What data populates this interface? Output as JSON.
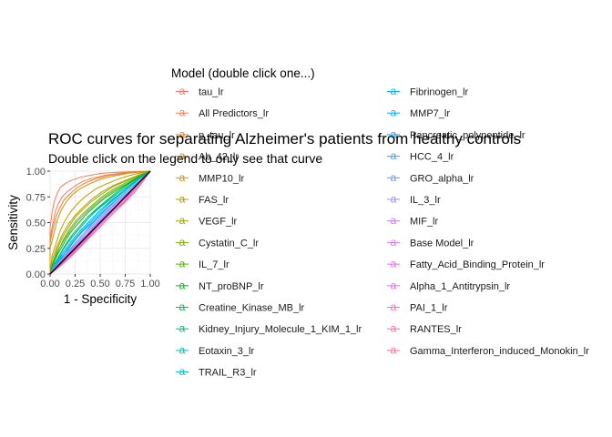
{
  "chart_data": {
    "type": "line",
    "title": "ROC curves for separating Alzheimer's patients from healthy controls",
    "subtitle": "Double click on the legend to only see that curve",
    "xlabel": "1 - Specificity",
    "ylabel": "Sensitivity",
    "xlim": [
      0,
      1
    ],
    "ylim": [
      0,
      1
    ],
    "x_ticks": [
      "0.00",
      "0.25",
      "0.50",
      "0.75",
      "1.00"
    ],
    "y_ticks": [
      "0.00",
      "0.25",
      "0.50",
      "0.75",
      "1.00"
    ],
    "grid": true,
    "reference_line": {
      "x": [
        0,
        1
      ],
      "y": [
        0,
        1
      ]
    },
    "legend": {
      "title": "Model (double click one...)",
      "placement": "right"
    },
    "series": [
      {
        "name": "tau_lr",
        "color": "#F8766D",
        "x": [
          0,
          0,
          0.03,
          0.05,
          0.08,
          0.12,
          0.17,
          0.24,
          0.32,
          0.42,
          0.55,
          0.7,
          1
        ],
        "y": [
          0,
          0.35,
          0.5,
          0.6,
          0.68,
          0.75,
          0.8,
          0.85,
          0.9,
          0.93,
          0.96,
          0.98,
          1
        ]
      },
      {
        "name": "All Predictors_lr",
        "color": "#F07F59",
        "x": [
          0,
          0,
          0.02,
          0.04,
          0.07,
          0.1,
          0.15,
          0.21,
          0.3,
          0.4,
          0.52,
          0.7,
          1
        ],
        "y": [
          0,
          0.45,
          0.6,
          0.7,
          0.78,
          0.84,
          0.88,
          0.91,
          0.94,
          0.96,
          0.98,
          0.99,
          1
        ]
      },
      {
        "name": "p_tau_lr",
        "color": "#E68613",
        "x": [
          0,
          0,
          0.03,
          0.06,
          0.1,
          0.14,
          0.2,
          0.27,
          0.36,
          0.47,
          0.6,
          0.75,
          1
        ],
        "y": [
          0,
          0.3,
          0.45,
          0.56,
          0.65,
          0.72,
          0.78,
          0.84,
          0.89,
          0.93,
          0.96,
          0.98,
          1
        ]
      },
      {
        "name": "Ab_42_lr",
        "color": "#D89000",
        "x": [
          0,
          0,
          0.04,
          0.07,
          0.11,
          0.16,
          0.22,
          0.3,
          0.4,
          0.5,
          0.62,
          0.78,
          1
        ],
        "y": [
          0,
          0.25,
          0.4,
          0.52,
          0.62,
          0.7,
          0.77,
          0.83,
          0.88,
          0.92,
          0.95,
          0.98,
          1
        ]
      },
      {
        "name": "MMP10_lr",
        "color": "#C49A00",
        "x": [
          0,
          0.02,
          0.06,
          0.1,
          0.15,
          0.21,
          0.28,
          0.36,
          0.46,
          0.57,
          0.7,
          0.84,
          1
        ],
        "y": [
          0,
          0.18,
          0.3,
          0.42,
          0.52,
          0.61,
          0.69,
          0.76,
          0.83,
          0.88,
          0.93,
          0.97,
          1
        ]
      },
      {
        "name": "FAS_lr",
        "color": "#B0A000",
        "x": [
          0,
          0.02,
          0.07,
          0.12,
          0.18,
          0.25,
          0.33,
          0.42,
          0.52,
          0.63,
          0.75,
          0.88,
          1
        ],
        "y": [
          0,
          0.14,
          0.27,
          0.38,
          0.48,
          0.57,
          0.65,
          0.73,
          0.8,
          0.86,
          0.91,
          0.96,
          1
        ]
      },
      {
        "name": "VEGF_lr",
        "color": "#99A800",
        "x": [
          0,
          0.03,
          0.07,
          0.12,
          0.18,
          0.25,
          0.33,
          0.42,
          0.52,
          0.63,
          0.75,
          0.88,
          1
        ],
        "y": [
          0,
          0.12,
          0.24,
          0.35,
          0.45,
          0.55,
          0.63,
          0.71,
          0.78,
          0.85,
          0.9,
          0.96,
          1
        ]
      },
      {
        "name": "Cystatin_C_lr",
        "color": "#7CAE00",
        "x": [
          0,
          0.03,
          0.08,
          0.13,
          0.19,
          0.26,
          0.34,
          0.43,
          0.53,
          0.64,
          0.76,
          0.88,
          1
        ],
        "y": [
          0,
          0.1,
          0.22,
          0.33,
          0.43,
          0.52,
          0.6,
          0.68,
          0.76,
          0.83,
          0.89,
          0.95,
          1
        ]
      },
      {
        "name": "IL_7_lr",
        "color": "#53B400",
        "x": [
          0,
          0.03,
          0.08,
          0.14,
          0.2,
          0.27,
          0.35,
          0.44,
          0.54,
          0.65,
          0.77,
          0.89,
          1
        ],
        "y": [
          0,
          0.12,
          0.23,
          0.33,
          0.42,
          0.51,
          0.59,
          0.67,
          0.75,
          0.82,
          0.88,
          0.95,
          1
        ]
      },
      {
        "name": "NT_proBNP_lr",
        "color": "#00B81F",
        "x": [
          0,
          0.03,
          0.08,
          0.14,
          0.2,
          0.28,
          0.36,
          0.45,
          0.55,
          0.66,
          0.78,
          0.89,
          1
        ],
        "y": [
          0,
          0.1,
          0.2,
          0.3,
          0.4,
          0.49,
          0.58,
          0.66,
          0.74,
          0.81,
          0.88,
          0.95,
          1
        ]
      },
      {
        "name": "Creatine_Kinase_MB_lr",
        "color": "#00BB4E",
        "x": [
          0,
          0.04,
          0.09,
          0.15,
          0.22,
          0.3,
          0.38,
          0.47,
          0.57,
          0.67,
          0.78,
          0.89,
          1
        ],
        "y": [
          0,
          0.09,
          0.18,
          0.28,
          0.38,
          0.47,
          0.56,
          0.64,
          0.72,
          0.8,
          0.87,
          0.94,
          1
        ]
      },
      {
        "name": "Kidney_Injury_Molecule_1_KIM_1_lr",
        "color": "#00BF7D",
        "x": [
          0,
          0.04,
          0.09,
          0.15,
          0.22,
          0.3,
          0.38,
          0.47,
          0.57,
          0.68,
          0.79,
          0.9,
          1
        ],
        "y": [
          0,
          0.08,
          0.17,
          0.27,
          0.36,
          0.45,
          0.54,
          0.63,
          0.71,
          0.79,
          0.86,
          0.94,
          1
        ]
      },
      {
        "name": "Eotaxin_3_lr",
        "color": "#00C1A3",
        "x": [
          0,
          0.04,
          0.1,
          0.16,
          0.23,
          0.31,
          0.39,
          0.48,
          0.58,
          0.68,
          0.79,
          0.9,
          1
        ],
        "y": [
          0,
          0.1,
          0.19,
          0.28,
          0.37,
          0.46,
          0.55,
          0.63,
          0.71,
          0.79,
          0.86,
          0.93,
          1
        ]
      },
      {
        "name": "TRAIL_R3_lr",
        "color": "#00BFC4",
        "x": [
          0,
          0.04,
          0.1,
          0.16,
          0.23,
          0.31,
          0.4,
          0.49,
          0.59,
          0.69,
          0.8,
          0.9,
          1
        ],
        "y": [
          0,
          0.08,
          0.16,
          0.25,
          0.34,
          0.43,
          0.52,
          0.61,
          0.7,
          0.78,
          0.85,
          0.93,
          1
        ]
      },
      {
        "name": "Fibrinogen_lr",
        "color": "#00BAE0",
        "x": [
          0,
          0.05,
          0.1,
          0.17,
          0.24,
          0.32,
          0.41,
          0.5,
          0.6,
          0.7,
          0.8,
          0.9,
          1
        ],
        "y": [
          0,
          0.09,
          0.17,
          0.26,
          0.35,
          0.44,
          0.53,
          0.62,
          0.7,
          0.78,
          0.86,
          0.93,
          1
        ]
      },
      {
        "name": "MMP7_lr",
        "color": "#00B4EF",
        "x": [
          0,
          0.05,
          0.11,
          0.17,
          0.24,
          0.32,
          0.41,
          0.5,
          0.6,
          0.7,
          0.8,
          0.9,
          1
        ],
        "y": [
          0,
          0.07,
          0.15,
          0.24,
          0.33,
          0.42,
          0.51,
          0.6,
          0.69,
          0.77,
          0.85,
          0.93,
          1
        ]
      },
      {
        "name": "Pancreatic_polypeptide_lr",
        "color": "#00A9FF",
        "x": [
          0,
          0.05,
          0.11,
          0.18,
          0.25,
          0.33,
          0.42,
          0.51,
          0.61,
          0.71,
          0.81,
          0.91,
          1
        ],
        "y": [
          0,
          0.08,
          0.16,
          0.24,
          0.33,
          0.42,
          0.5,
          0.59,
          0.68,
          0.76,
          0.84,
          0.92,
          1
        ]
      },
      {
        "name": "HCC_4_lr",
        "color": "#35A2FF",
        "x": [
          0,
          0.05,
          0.11,
          0.18,
          0.26,
          0.34,
          0.42,
          0.51,
          0.61,
          0.71,
          0.81,
          0.91,
          1
        ],
        "y": [
          0,
          0.07,
          0.14,
          0.22,
          0.31,
          0.4,
          0.49,
          0.58,
          0.67,
          0.76,
          0.84,
          0.92,
          1
        ]
      },
      {
        "name": "GRO_alpha_lr",
        "color": "#619CFF",
        "x": [
          0,
          0.05,
          0.12,
          0.19,
          0.26,
          0.34,
          0.43,
          0.52,
          0.62,
          0.72,
          0.82,
          0.91,
          1
        ],
        "y": [
          0,
          0.08,
          0.15,
          0.23,
          0.31,
          0.4,
          0.48,
          0.57,
          0.66,
          0.75,
          0.83,
          0.92,
          1
        ]
      },
      {
        "name": "IL_3_lr",
        "color": "#9590FF",
        "x": [
          0,
          0.06,
          0.12,
          0.19,
          0.27,
          0.35,
          0.44,
          0.53,
          0.62,
          0.72,
          0.82,
          0.91,
          1
        ],
        "y": [
          0,
          0.07,
          0.14,
          0.22,
          0.3,
          0.39,
          0.47,
          0.56,
          0.65,
          0.74,
          0.83,
          0.91,
          1
        ]
      },
      {
        "name": "MIF_lr",
        "color": "#B983FF",
        "x": [
          0,
          0.06,
          0.12,
          0.19,
          0.27,
          0.35,
          0.44,
          0.53,
          0.63,
          0.73,
          0.82,
          0.91,
          1
        ],
        "y": [
          0,
          0.06,
          0.13,
          0.21,
          0.29,
          0.37,
          0.46,
          0.55,
          0.64,
          0.73,
          0.82,
          0.91,
          1
        ]
      },
      {
        "name": "Base Model_lr",
        "color": "#D277FF",
        "x": [
          0,
          0.06,
          0.13,
          0.2,
          0.28,
          0.36,
          0.45,
          0.54,
          0.63,
          0.73,
          0.82,
          0.91,
          1
        ],
        "y": [
          0,
          0.07,
          0.14,
          0.21,
          0.29,
          0.37,
          0.46,
          0.55,
          0.64,
          0.73,
          0.82,
          0.91,
          1
        ]
      },
      {
        "name": "Fatty_Acid_Binding_Protein_lr",
        "color": "#E76BF3",
        "x": [
          0,
          0.06,
          0.13,
          0.2,
          0.28,
          0.36,
          0.45,
          0.54,
          0.64,
          0.73,
          0.83,
          0.92,
          1
        ],
        "y": [
          0,
          0.06,
          0.12,
          0.2,
          0.28,
          0.36,
          0.45,
          0.54,
          0.63,
          0.72,
          0.81,
          0.9,
          1
        ]
      },
      {
        "name": "Alpha_1_Antitrypsin_lr",
        "color": "#F564E3",
        "x": [
          0,
          0.07,
          0.13,
          0.21,
          0.29,
          0.37,
          0.46,
          0.55,
          0.64,
          0.74,
          0.83,
          0.92,
          1
        ],
        "y": [
          0,
          0.06,
          0.13,
          0.2,
          0.28,
          0.36,
          0.44,
          0.53,
          0.62,
          0.71,
          0.81,
          0.9,
          1
        ]
      },
      {
        "name": "PAI_1_lr",
        "color": "#FD61D1",
        "x": [
          0,
          0.07,
          0.14,
          0.21,
          0.29,
          0.37,
          0.46,
          0.55,
          0.64,
          0.74,
          0.83,
          0.92,
          1
        ],
        "y": [
          0,
          0.05,
          0.12,
          0.19,
          0.27,
          0.35,
          0.44,
          0.53,
          0.62,
          0.71,
          0.8,
          0.9,
          1
        ]
      },
      {
        "name": "RANTES_lr",
        "color": "#FF64B0",
        "x": [
          0,
          0.07,
          0.14,
          0.22,
          0.3,
          0.38,
          0.47,
          0.56,
          0.65,
          0.74,
          0.83,
          0.92,
          1
        ],
        "y": [
          0,
          0.06,
          0.12,
          0.19,
          0.27,
          0.35,
          0.43,
          0.52,
          0.61,
          0.7,
          0.8,
          0.9,
          1
        ]
      },
      {
        "name": "Gamma_Interferon_induced_Monokin_lr",
        "color": "#FF6C91",
        "x": [
          0,
          0.07,
          0.14,
          0.22,
          0.3,
          0.38,
          0.47,
          0.56,
          0.65,
          0.75,
          0.84,
          0.92,
          1
        ],
        "y": [
          0,
          0.05,
          0.11,
          0.18,
          0.26,
          0.34,
          0.43,
          0.52,
          0.61,
          0.7,
          0.79,
          0.89,
          1
        ]
      }
    ]
  }
}
